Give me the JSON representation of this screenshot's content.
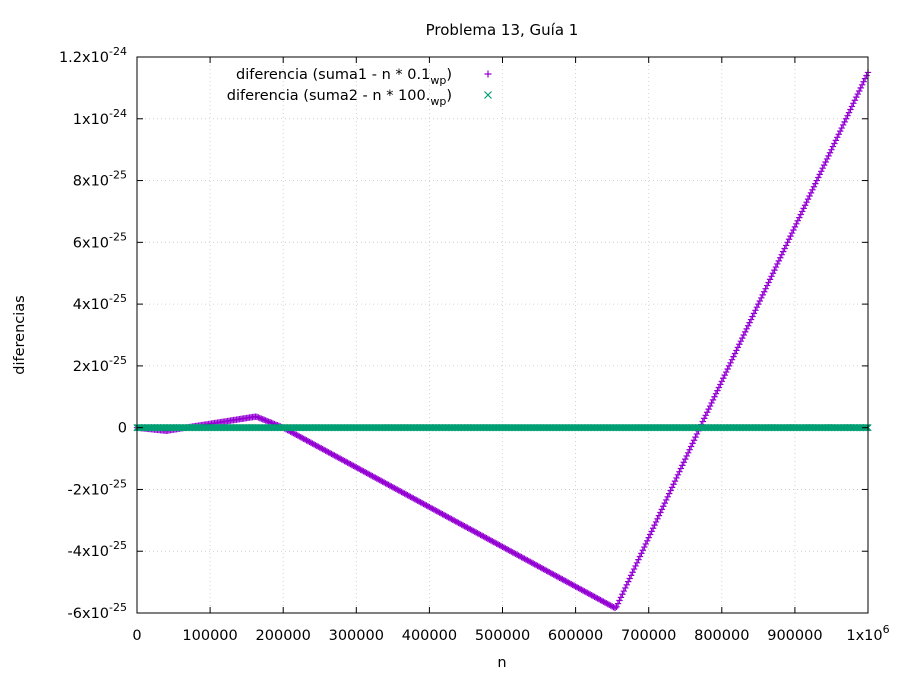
{
  "chart_data": {
    "type": "scatter",
    "title": "Problema 13, Guía 1",
    "xlabel": "n",
    "ylabel": "diferencias",
    "xlim": [
      0,
      1000000
    ],
    "ylim": [
      -6e-25,
      1.2e-24
    ],
    "grid": true,
    "legend_position": "top-left",
    "x_ticks": [
      {
        "value": 0,
        "label": "0"
      },
      {
        "value": 100000,
        "label": "100000"
      },
      {
        "value": 200000,
        "label": "200000"
      },
      {
        "value": 300000,
        "label": "300000"
      },
      {
        "value": 400000,
        "label": "400000"
      },
      {
        "value": 500000,
        "label": "500000"
      },
      {
        "value": 600000,
        "label": "600000"
      },
      {
        "value": 700000,
        "label": "700000"
      },
      {
        "value": 800000,
        "label": "800000"
      },
      {
        "value": 900000,
        "label": "900000"
      },
      {
        "value": 1000000,
        "label": "1x10",
        "exp": "6"
      }
    ],
    "y_ticks": [
      {
        "value": -6e-25,
        "label": "-6x10",
        "exp": "-25"
      },
      {
        "value": -4e-25,
        "label": "-4x10",
        "exp": "-25"
      },
      {
        "value": -2e-25,
        "label": "-2x10",
        "exp": "-25"
      },
      {
        "value": 0,
        "label": "0"
      },
      {
        "value": 2e-25,
        "label": "2x10",
        "exp": "-25"
      },
      {
        "value": 4e-25,
        "label": "4x10",
        "exp": "-25"
      },
      {
        "value": 6e-25,
        "label": "6x10",
        "exp": "-25"
      },
      {
        "value": 8e-25,
        "label": "8x10",
        "exp": "-25"
      },
      {
        "value": 1e-24,
        "label": "1x10",
        "exp": "-24"
      },
      {
        "value": 1.2e-24,
        "label": "1.2x10",
        "exp": "-24"
      }
    ],
    "series": [
      {
        "name": "diferencia (suma1 - n * 0.1_wp)",
        "legend_main": "diferencia (suma1 - n * 0.1",
        "legend_sub": "wp",
        "legend_tail": ")",
        "marker": "+",
        "color": "#9400d3",
        "points": [
          [
            0,
            0
          ],
          [
            40000,
            -1e-26
          ],
          [
            163000,
            3.6e-26
          ],
          [
            200000,
            0
          ],
          [
            655000,
            -5.85e-25
          ],
          [
            770000,
            0
          ],
          [
            1000000,
            1.15e-24
          ]
        ]
      },
      {
        "name": "diferencia (suma2 - n * 100._wp)",
        "legend_main": "diferencia (suma2 - n * 100.",
        "legend_sub": "wp",
        "legend_tail": ")",
        "marker": "x",
        "color": "#009e73",
        "points": [
          [
            0,
            0
          ],
          [
            1000000,
            0
          ]
        ]
      }
    ]
  }
}
